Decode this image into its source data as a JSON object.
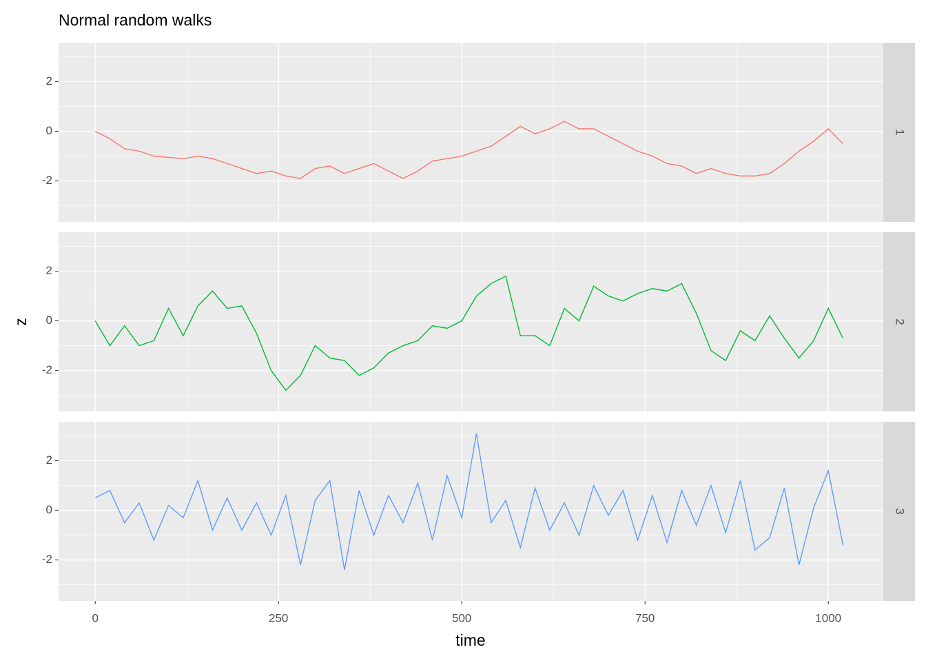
{
  "chart_data": {
    "type": "line",
    "title": "Normal random walks",
    "xlabel": "time",
    "ylabel": "z",
    "facet": true,
    "x": [
      0,
      20,
      40,
      60,
      80,
      100,
      120,
      140,
      160,
      180,
      200,
      220,
      240,
      260,
      280,
      300,
      320,
      340,
      360,
      380,
      400,
      420,
      440,
      460,
      480,
      500,
      520,
      540,
      560,
      580,
      600,
      620,
      640,
      660,
      680,
      700,
      720,
      740,
      760,
      780,
      800,
      820,
      840,
      860,
      880,
      900,
      920,
      940,
      960,
      980,
      1000,
      1020
    ],
    "series": [
      {
        "name": "1",
        "color": "#F8766D",
        "values": [
          0,
          -0.3,
          -0.7,
          -0.8,
          -1.0,
          -1.05,
          -1.1,
          -1.0,
          -1.1,
          -1.3,
          -1.5,
          -1.7,
          -1.6,
          -1.8,
          -1.9,
          -1.5,
          -1.4,
          -1.7,
          -1.5,
          -1.3,
          -1.6,
          -1.9,
          -1.6,
          -1.2,
          -1.1,
          -1.0,
          -0.8,
          -0.6,
          -0.2,
          0.2,
          -0.1,
          0.1,
          0.4,
          0.1,
          0.1,
          -0.2,
          -0.5,
          -0.8,
          -1.0,
          -1.3,
          -1.4,
          -1.7,
          -1.5,
          -1.7,
          -1.8,
          -1.8,
          -1.7,
          -1.3,
          -0.8,
          -0.4,
          0.1,
          -0.5
        ]
      },
      {
        "name": "2",
        "color": "#00BA38",
        "values": [
          0,
          -1.0,
          -0.2,
          -1.0,
          -0.8,
          0.5,
          -0.6,
          0.6,
          1.2,
          0.5,
          0.6,
          -0.5,
          -2.0,
          -2.8,
          -2.2,
          -1.0,
          -1.5,
          -1.6,
          -2.2,
          -1.9,
          -1.3,
          -1.0,
          -0.8,
          -0.2,
          -0.3,
          0.0,
          1.0,
          1.5,
          1.8,
          -0.6,
          -0.6,
          -1.0,
          0.5,
          0.0,
          1.4,
          1.0,
          0.8,
          1.1,
          1.3,
          1.2,
          1.5,
          0.3,
          -1.2,
          -1.6,
          -0.4,
          -0.8,
          0.2,
          -0.7,
          -1.5,
          -0.8,
          0.5,
          -0.7
        ]
      },
      {
        "name": "3",
        "color": "#619CFF",
        "values": [
          0.5,
          0.8,
          -0.5,
          0.3,
          -1.2,
          0.2,
          -0.3,
          1.2,
          -0.8,
          0.5,
          -0.8,
          0.3,
          -1.0,
          0.6,
          -2.2,
          0.4,
          1.2,
          -2.4,
          0.8,
          -1.0,
          0.6,
          -0.5,
          1.1,
          -1.2,
          1.4,
          -0.3,
          3.1,
          -0.5,
          0.4,
          -1.5,
          0.9,
          -0.8,
          0.3,
          -1.0,
          1.0,
          -0.2,
          0.8,
          -1.2,
          0.6,
          -1.3,
          0.8,
          -0.6,
          1.0,
          -0.9,
          1.2,
          -1.6,
          -1.1,
          0.9,
          -2.2,
          0.1,
          1.6,
          -1.4
        ]
      }
    ],
    "xlim": [
      -50,
      1075
    ],
    "xticks": [
      0,
      250,
      500,
      750,
      1000
    ],
    "xminor": [
      125,
      375,
      625,
      875
    ],
    "ylim": [
      -3.65,
      3.57
    ],
    "yticks": [
      -2,
      0,
      2
    ],
    "yminor": [
      -3,
      -1,
      1,
      3
    ],
    "grid": true
  }
}
